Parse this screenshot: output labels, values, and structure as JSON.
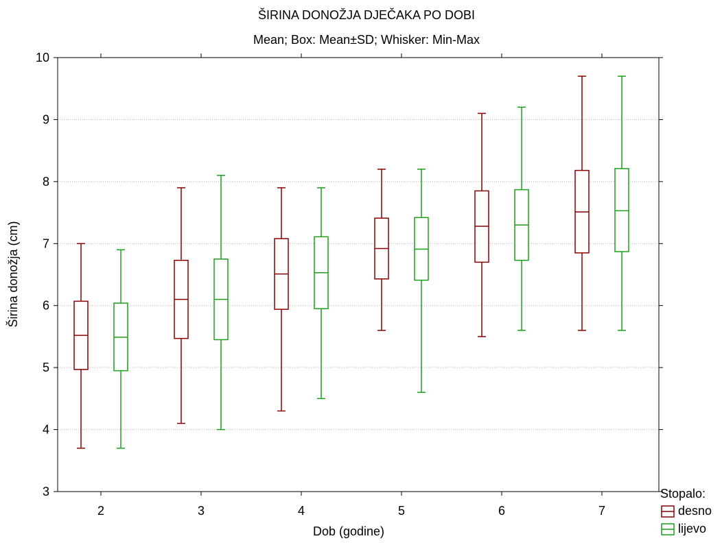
{
  "chart_data": {
    "type": "boxplot",
    "title": "ŠIRINA DONOŽJA DJEČAKA PO DOBI",
    "subtitle": "Mean; Box: Mean±SD; Whisker: Min-Max",
    "xlabel": "Dob (godine)",
    "ylabel": "Širina donožja (cm)",
    "ylim": [
      3,
      10
    ],
    "yticks": [
      "3",
      "4",
      "5",
      "6",
      "7",
      "8",
      "9",
      "10"
    ],
    "grid": "horizontal dotted",
    "categories": [
      "2",
      "3",
      "4",
      "5",
      "6",
      "7"
    ],
    "legend": {
      "title": "Stopalo:",
      "position": "bottom-right"
    },
    "series": [
      {
        "name": "desno",
        "color": "#8b0000",
        "mean": [
          5.52,
          6.1,
          6.51,
          6.92,
          7.28,
          7.51
        ],
        "sd_low": [
          4.97,
          5.47,
          5.94,
          6.43,
          6.7,
          6.85
        ],
        "sd_high": [
          6.07,
          6.73,
          7.08,
          7.41,
          7.85,
          8.18
        ],
        "min": [
          3.7,
          4.1,
          4.3,
          5.6,
          5.5,
          5.6
        ],
        "max": [
          7.0,
          7.9,
          7.9,
          8.2,
          9.1,
          9.7
        ]
      },
      {
        "name": "lijevo",
        "color": "#1aa01a",
        "mean": [
          5.49,
          6.1,
          6.53,
          6.91,
          7.3,
          7.53
        ],
        "sd_low": [
          4.95,
          5.45,
          5.95,
          6.41,
          6.73,
          6.87
        ],
        "sd_high": [
          6.04,
          6.75,
          7.11,
          7.42,
          7.87,
          8.21
        ],
        "min": [
          3.7,
          4.0,
          4.5,
          4.6,
          5.6,
          5.6
        ],
        "max": [
          6.9,
          8.1,
          7.9,
          8.2,
          9.2,
          9.7
        ]
      }
    ]
  }
}
